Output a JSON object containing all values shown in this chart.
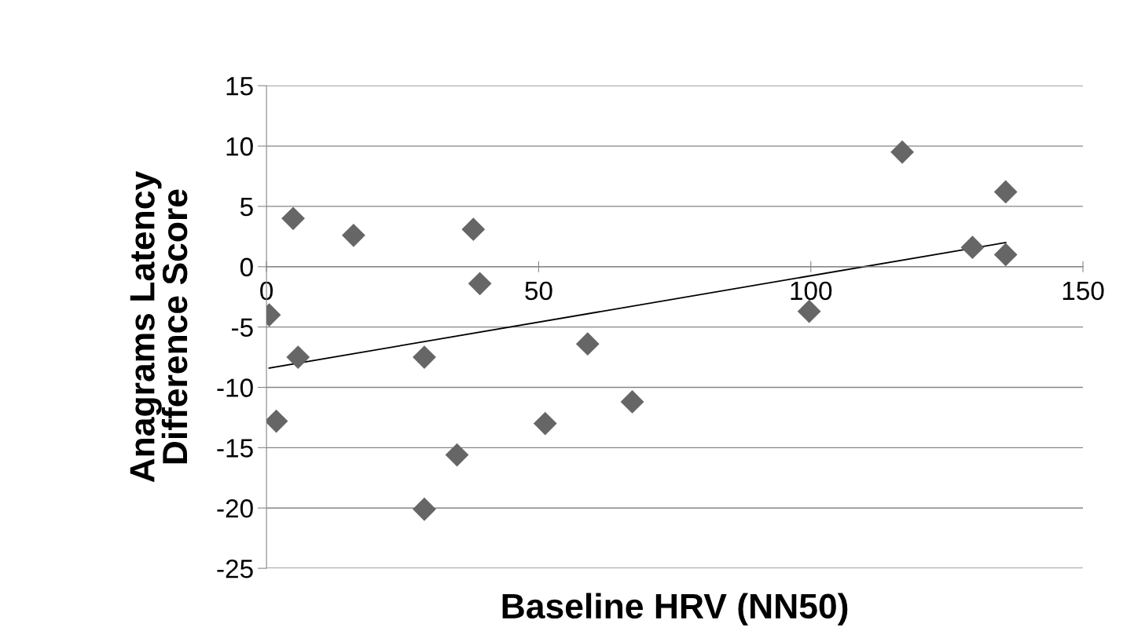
{
  "chart_data": {
    "type": "scatter",
    "xlabel": "Baseline HRV (NN50)",
    "ylabel": "Anagrams Latency\nDifference Score",
    "xlim": [
      0,
      150
    ],
    "xticks": [
      0,
      50,
      100,
      150
    ],
    "ylim": [
      -25,
      15
    ],
    "yticks": [
      -25,
      -20,
      -15,
      -10,
      -5,
      0,
      5,
      10,
      15
    ],
    "grid": "y",
    "series": [
      {
        "color": "#666666",
        "marker": "diamond",
        "x": [
          0.5,
          1.8,
          4.9,
          5.8,
          16,
          29,
          29,
          35,
          38,
          39.2,
          51.2,
          59,
          67.2,
          99.7,
          116.8,
          129.7,
          135.8,
          135.8
        ],
        "values": [
          -4,
          -12.8,
          4.0,
          -7.5,
          2.6,
          -7.5,
          -20.1,
          -15.6,
          3.1,
          -1.4,
          -13.0,
          -6.4,
          -11.2,
          -3.7,
          9.5,
          1.6,
          6.2,
          1.0
        ]
      },
      {
        "type": "line",
        "color": "#000000",
        "x": [
          0.5,
          135.8
        ],
        "values": [
          -8.4,
          2.0
        ]
      }
    ]
  }
}
